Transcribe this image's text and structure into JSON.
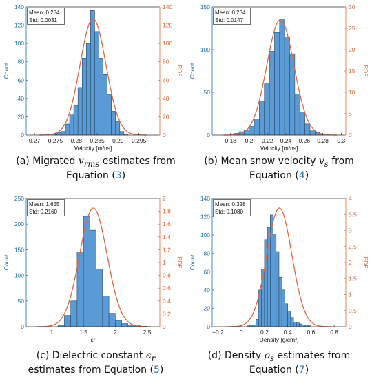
{
  "colors": {
    "bar": "#5b9bd5",
    "bar_edge": "#2c4a66",
    "pdf": "#e8643b",
    "left_axis": "#1f6fb0",
    "right_axis": "#e06a3a",
    "axis": "#333333"
  },
  "captions": [
    {
      "prefix": "(a) Migrated ",
      "sym": "v",
      "sub": "rms",
      "rest": " estimates from",
      "line2a": "Equation (",
      "ref": "3",
      "line2b": ")"
    },
    {
      "prefix": "(b) Mean snow velocity ",
      "sym": "v",
      "sub": "s",
      "rest": " from",
      "line2a": "Equation (",
      "ref": "4",
      "line2b": ")"
    },
    {
      "prefix": "(c) Dielectric constant ",
      "sym": "ϵ",
      "sub": "r",
      "rest": "",
      "line2a": "estimates from Equation  (",
      "ref": "5",
      "line2b": ")"
    },
    {
      "prefix": "(d) Density ",
      "sym": "ρ",
      "sub": "s",
      "rest": " estimates from",
      "line2a": "Equation (",
      "ref": "7",
      "line2b": ")"
    }
  ],
  "chart_data": [
    {
      "type": "bar",
      "stats": {
        "mean": "Mean: 0.284",
        "std": "Std: 0.0031"
      },
      "xlabel": "Velocity [m/ns]",
      "ylabel": "Count",
      "y2label": "PDF",
      "xlim": [
        0.268,
        0.3
      ],
      "ylim": [
        0,
        140
      ],
      "y2lim": [
        0,
        140
      ],
      "xticks": [
        0.27,
        0.275,
        0.28,
        0.285,
        0.29,
        0.295
      ],
      "xtick_labels": [
        "0.27",
        "0.275",
        "0.28",
        "0.285",
        "0.29",
        "0.295"
      ],
      "yticks": [
        0,
        20,
        40,
        60,
        80,
        100,
        120,
        140
      ],
      "y2ticks": [
        0,
        20,
        40,
        60,
        80,
        100,
        120,
        140
      ],
      "bin_start": 0.2744,
      "bin_width": 0.001,
      "counts": [
        1,
        3,
        4,
        12,
        22,
        32,
        52,
        84,
        100,
        136,
        113,
        84,
        66,
        44,
        26,
        15,
        4,
        1
      ],
      "pdf": {
        "mean": 0.284,
        "std": 0.0031,
        "peak": 127
      }
    },
    {
      "type": "bar",
      "stats": {
        "mean": "Mean: 0.234",
        "std": "Std: 0.0147"
      },
      "xlabel": "Velocity [m/ns]",
      "ylabel": "Count",
      "y2label": "PDF",
      "xlim": [
        0.16,
        0.305
      ],
      "ylim": [
        0,
        150
      ],
      "y2lim": [
        0,
        30
      ],
      "xticks": [
        0.18,
        0.2,
        0.22,
        0.24,
        0.26,
        0.28,
        0.3
      ],
      "xtick_labels": [
        "0.18",
        "0.2",
        "0.22",
        "0.24",
        "0.26",
        "0.28",
        "0.3"
      ],
      "yticks": [
        0,
        50,
        100,
        150
      ],
      "y2ticks": [
        0,
        5,
        10,
        15,
        20,
        25,
        30
      ],
      "bin_start": 0.1836,
      "bin_width": 0.0055,
      "counts": [
        2,
        4,
        6,
        10,
        19,
        39,
        60,
        98,
        120,
        135,
        115,
        95,
        48,
        27,
        13,
        5,
        3,
        1
      ],
      "pdf": {
        "mean": 0.234,
        "std": 0.0147,
        "peak": 27
      }
    },
    {
      "type": "bar",
      "stats": {
        "mean": "Mean: 1.655",
        "std": "Std: 0.2160"
      },
      "xlabel": "εr",
      "ylabel": "Count",
      "y2label": "PDF",
      "xlim": [
        0.6,
        2.7
      ],
      "ylim": [
        0,
        250
      ],
      "y2lim": [
        0,
        2
      ],
      "xticks": [
        1,
        1.5,
        2,
        2.5
      ],
      "xtick_labels": [
        "1",
        "1.5",
        "2",
        "2.5"
      ],
      "yticks": [
        0,
        50,
        100,
        150,
        200,
        250
      ],
      "y2ticks": [
        0,
        0.2,
        0.4,
        0.6,
        0.8,
        1,
        1.2,
        1.4,
        1.6,
        1.8,
        2
      ],
      "bin_start": 1.1,
      "bin_width": 0.1,
      "counts": [
        2,
        22,
        50,
        146,
        215,
        188,
        112,
        60,
        26,
        12,
        6,
        3,
        2,
        1
      ],
      "pdf": {
        "mean": 1.655,
        "std": 0.216,
        "peak": 1.85
      }
    },
    {
      "type": "bar",
      "stats": {
        "mean": "Mean: 0.328",
        "std": "Std: 0.1080"
      },
      "xlabel": "Density [g/cm³]",
      "ylabel": "Count",
      "y2label": "PDF",
      "xlim": [
        -0.25,
        0.9
      ],
      "ylim": [
        0,
        140
      ],
      "y2lim": [
        0,
        4
      ],
      "xticks": [
        -0.2,
        0,
        0.2,
        0.4,
        0.6,
        0.8
      ],
      "xtick_labels": [
        "−0.2",
        "0",
        "0.2",
        "0.4",
        "0.6",
        "0.8"
      ],
      "yticks": [
        0,
        20,
        40,
        60,
        80,
        100,
        120,
        140
      ],
      "y2ticks": [
        0,
        0.5,
        1,
        1.5,
        2,
        2.5,
        3,
        3.5,
        4
      ],
      "bin_start": 0.05,
      "bin_width": 0.025,
      "counts": [
        1,
        2,
        2,
        8,
        40,
        63,
        95,
        108,
        122,
        101,
        82,
        54,
        40,
        25,
        17,
        10,
        5,
        4,
        3,
        2,
        2,
        1
      ],
      "pdf": {
        "mean": 0.328,
        "std": 0.108,
        "peak": 3.7
      }
    }
  ]
}
